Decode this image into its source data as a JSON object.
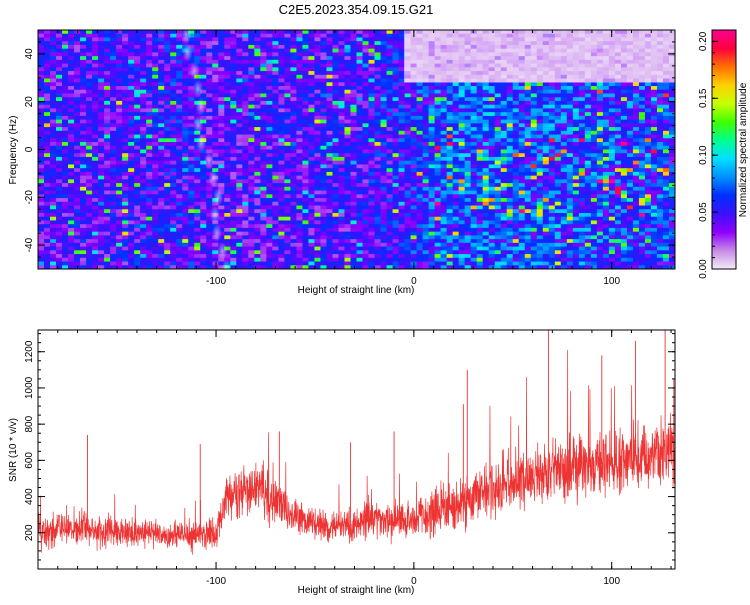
{
  "figure_title": "C2E5.2023.354.09.15.G21",
  "chart_data": [
    {
      "type": "heatmap",
      "xlabel": "Height of straight line (km)",
      "ylabel": "Frequency (Hz)",
      "xlim": [
        -190,
        132
      ],
      "ylim": [
        -50,
        50
      ],
      "xticks": [
        -100,
        0,
        100
      ],
      "xtick_labels": [
        "-100",
        "0",
        "100"
      ],
      "yticks": [
        -40,
        -20,
        0,
        20,
        40
      ],
      "ytick_labels": [
        "-40",
        "-20",
        "0",
        "20",
        "40"
      ],
      "colorbar": {
        "label": "Normalized spectral amplitude",
        "range": [
          0.0,
          0.21
        ],
        "ticks": [
          0.0,
          0.05,
          0.1,
          0.15,
          0.2
        ],
        "tick_labels": [
          "0.00",
          "0.05",
          "0.10",
          "0.15",
          "0.20"
        ],
        "colors": [
          "#f4ecfb",
          "#c78ae6",
          "#8f00ff",
          "#3a10ff",
          "#0030ff",
          "#0090ff",
          "#00e0ff",
          "#00ff90",
          "#40ff00",
          "#c8ff00",
          "#ffd000",
          "#ff7000",
          "#ff0040",
          "#ff0090"
        ]
      },
      "amplitude_profile": {
        "x": [
          -190,
          -150,
          -110,
          -100,
          -60,
          -30,
          0,
          20,
          60,
          100,
          132
        ],
        "mean": [
          0.05,
          0.05,
          0.055,
          0.045,
          0.05,
          0.05,
          0.06,
          0.075,
          0.07,
          0.07,
          0.065
        ]
      },
      "features": [
        {
          "name": "diagonal-trace",
          "x": [
            -115,
            -95
          ],
          "y": [
            48,
            -50
          ]
        },
        {
          "name": "high-frequency-fade",
          "x": [
            -5,
            132
          ],
          "y": [
            28,
            50
          ]
        }
      ],
      "grid": false,
      "legend": "colorbar-right"
    },
    {
      "type": "line",
      "xlabel": "Height of straight line (km)",
      "ylabel": "SNR (10 * v/v)",
      "xlim": [
        -190,
        132
      ],
      "ylim": [
        0,
        1320
      ],
      "xticks": [
        -100,
        0,
        100
      ],
      "xtick_labels": [
        "-100",
        "0",
        "100"
      ],
      "yticks": [
        200,
        400,
        600,
        800,
        1000,
        1200
      ],
      "ytick_labels": [
        "200",
        "400",
        "600",
        "800",
        "1000",
        "1200"
      ],
      "series": [
        {
          "color": "#ee3333",
          "x": [
            -190,
            -170,
            -150,
            -130,
            -110,
            -100,
            -95,
            -85,
            -78,
            -70,
            -60,
            -45,
            -30,
            -20,
            -10,
            0,
            10,
            20,
            30,
            40,
            50,
            60,
            70,
            80,
            90,
            100,
            110,
            120,
            132
          ],
          "baseline": [
            210,
            220,
            205,
            195,
            190,
            195,
            390,
            430,
            480,
            360,
            300,
            230,
            240,
            290,
            260,
            270,
            300,
            340,
            400,
            460,
            480,
            520,
            540,
            560,
            570,
            590,
            620,
            640,
            650
          ],
          "spread": [
            120,
            130,
            120,
            110,
            120,
            120,
            180,
            200,
            220,
            180,
            150,
            120,
            130,
            140,
            140,
            150,
            170,
            180,
            200,
            210,
            220,
            230,
            240,
            240,
            250,
            250,
            260,
            260,
            260
          ],
          "spikes": [
            [
              -165,
              740
            ],
            [
              -108,
              690
            ],
            [
              -68,
              760
            ],
            [
              -32,
              700
            ],
            [
              -10,
              760
            ],
            [
              25,
              910
            ],
            [
              27,
              1100
            ],
            [
              68,
              1330
            ],
            [
              95,
              1180
            ],
            [
              112,
              1260
            ],
            [
              127,
              1340
            ]
          ]
        }
      ],
      "grid": false,
      "legend": "none"
    }
  ]
}
